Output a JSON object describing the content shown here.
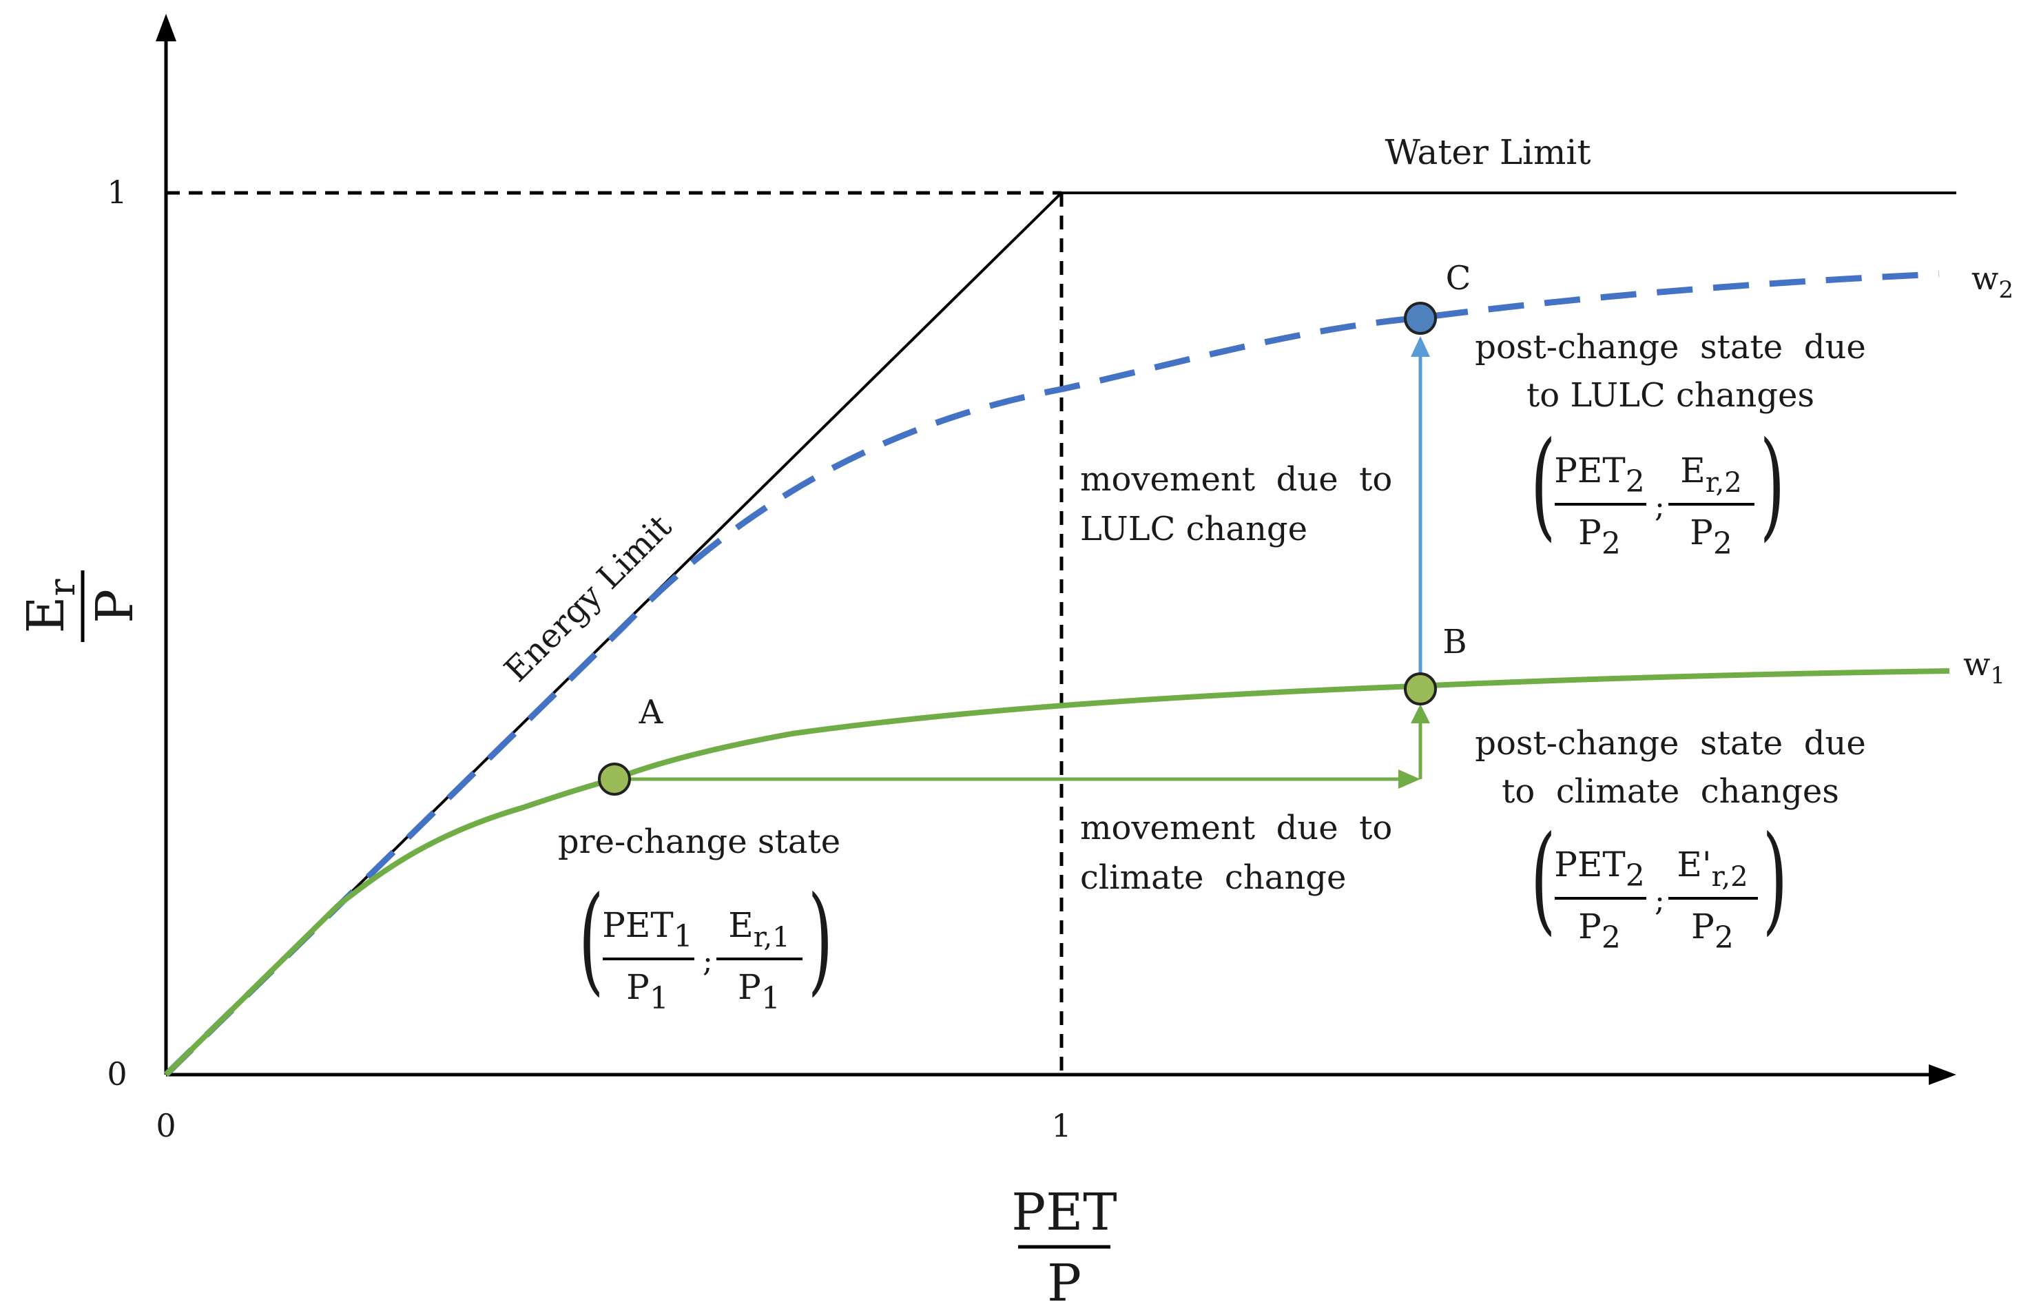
{
  "diagram": {
    "axes": {
      "x_label_numerator": "PET",
      "x_label_denominator": "P",
      "y_label_numerator_main": "E",
      "y_label_numerator_sub": "r",
      "y_label_denominator": "P",
      "x_ticks": [
        "0",
        "1"
      ],
      "y_ticks": [
        "0",
        "1"
      ]
    },
    "limits": {
      "energy_limit": "Energy Limit",
      "water_limit": "Water Limit"
    },
    "curves": {
      "w1": {
        "label": "w",
        "sub": "1",
        "color": "#70ad47"
      },
      "w2": {
        "label": "w",
        "sub": "2",
        "color": "#4472c4"
      }
    },
    "points": {
      "A": {
        "label": "A",
        "color": "#9bbb59"
      },
      "B": {
        "label": "B",
        "color": "#9bbb59"
      },
      "C": {
        "label": "C",
        "color": "#4f81bd"
      }
    },
    "annotations": {
      "pre_change": "pre-change state",
      "climate_move_1": "movement  due  to",
      "climate_move_2": "climate  change",
      "lulc_move_1": "movement  due  to",
      "lulc_move_2": "LULC change",
      "post_climate_1": "post-change  state  due",
      "post_climate_2": "to  climate  changes",
      "post_lulc_1": "post-change  state  due",
      "post_lulc_2": "to LULC changes"
    },
    "formulas": {
      "a": {
        "left_num": "PET",
        "left_num_sub": "1",
        "left_den": "P",
        "left_den_sub": "1",
        "right_num": "E",
        "right_num_sub": "r,1",
        "right_den": "P",
        "right_den_sub": "1",
        "sep": ";"
      },
      "b": {
        "left_num": "PET",
        "left_num_sub": "2",
        "left_den": "P",
        "left_den_sub": "2",
        "right_num": "E'",
        "right_num_sub": "r,2",
        "right_den": "P",
        "right_den_sub": "2",
        "sep": ";"
      },
      "c": {
        "left_num": "PET",
        "left_num_sub": "2",
        "left_den": "P",
        "left_den_sub": "2",
        "right_num": "E",
        "right_num_sub": "r,2",
        "right_den": "P",
        "right_den_sub": "2",
        "sep": ";"
      }
    }
  }
}
